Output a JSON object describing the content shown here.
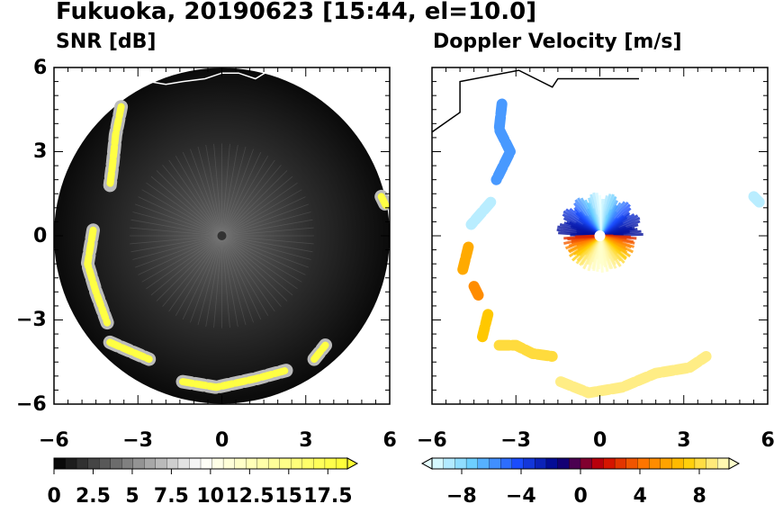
{
  "figure": {
    "title": "Fukuoka, 20190623 [15:44, el=10.0]"
  },
  "chart_data": [
    {
      "type": "heatmap",
      "title": "SNR [dB]",
      "xlim": [
        -6,
        6
      ],
      "ylim": [
        -6,
        6
      ],
      "x_ticks": [
        "−6",
        "−3",
        "0",
        "3",
        "6"
      ],
      "y_ticks": [
        "6",
        "3",
        "0",
        "−3",
        "−6"
      ],
      "x_tick_values": [
        -6,
        -3,
        0,
        3,
        6
      ],
      "y_tick_values": [
        6,
        3,
        0,
        -3,
        -6
      ],
      "radar_range": 6,
      "colorbar": {
        "min": 0,
        "max": 18.75,
        "extend": "max",
        "tick_labels": [
          "0",
          "2.5",
          "5",
          "7.5",
          "10",
          "12.5",
          "15",
          "17.5"
        ],
        "tick_values": [
          0,
          2.5,
          5,
          7.5,
          10,
          12.5,
          15,
          17.5
        ],
        "colors": [
          "#000000",
          "#ffffff",
          "#ffff33"
        ]
      },
      "echo_bands": [
        {
          "points": [
            [
              -3.6,
              4.6
            ],
            [
              -3.8,
              3.6
            ],
            [
              -3.9,
              2.6
            ],
            [
              -4.0,
              1.8
            ]
          ],
          "value": 18
        },
        {
          "points": [
            [
              -4.6,
              0.2
            ],
            [
              -4.8,
              -1.0
            ],
            [
              -4.5,
              -2.0
            ],
            [
              -4.1,
              -3.1
            ]
          ],
          "value": 18
        },
        {
          "points": [
            [
              -4.0,
              -3.8
            ],
            [
              -3.3,
              -4.1
            ],
            [
              -2.6,
              -4.4
            ]
          ],
          "value": 18
        },
        {
          "points": [
            [
              -1.4,
              -5.2
            ],
            [
              -0.2,
              -5.4
            ],
            [
              1.2,
              -5.1
            ],
            [
              2.3,
              -4.8
            ]
          ],
          "value": 18
        },
        {
          "points": [
            [
              3.3,
              -4.4
            ],
            [
              3.7,
              -3.9
            ]
          ],
          "value": 18
        },
        {
          "points": [
            [
              5.7,
              1.4
            ],
            [
              5.9,
              1.0
            ]
          ],
          "value": 18
        }
      ],
      "coastline": [
        [
          -2.6,
          5.5
        ],
        [
          -2.0,
          5.4
        ],
        [
          -1.4,
          5.5
        ],
        [
          -0.6,
          5.6
        ],
        [
          0,
          5.8
        ],
        [
          0.6,
          5.8
        ],
        [
          1.2,
          5.6
        ],
        [
          1.7,
          5.9
        ]
      ]
    },
    {
      "type": "heatmap",
      "title": "Doppler Velocity [m/s]",
      "xlim": [
        -6,
        6
      ],
      "ylim": [
        -6,
        6
      ],
      "x_ticks": [
        "−6",
        "−3",
        "0",
        "3",
        "6"
      ],
      "y_ticks": [],
      "x_tick_values": [
        -6,
        -3,
        0,
        3,
        6
      ],
      "radar_range": 6,
      "colorbar": {
        "min": -10,
        "max": 10,
        "extend": "both",
        "tick_labels": [
          "−8",
          "−4",
          "0",
          "4",
          "8"
        ],
        "tick_values": [
          -8,
          -4,
          0,
          4,
          8
        ],
        "colors": [
          "#e6ffff",
          "#66ccff",
          "#1a4dff",
          "#000080",
          "#cc0000",
          "#ff7700",
          "#ffcc00",
          "#ffffcc"
        ]
      },
      "echo_bands": [
        {
          "points": [
            [
              -3.5,
              4.7
            ],
            [
              -3.6,
              3.8
            ],
            [
              -3.2,
              3.0
            ],
            [
              -3.7,
              2.0
            ]
          ],
          "value": -6
        },
        {
          "points": [
            [
              -3.9,
              1.2
            ],
            [
              -4.6,
              0.4
            ]
          ],
          "value": -9
        },
        {
          "points": [
            [
              -4.7,
              -0.4
            ],
            [
              -4.9,
              -1.2
            ]
          ],
          "value": 6
        },
        {
          "points": [
            [
              -4.5,
              -1.8
            ],
            [
              -4.3,
              -2.2
            ]
          ],
          "value": 5
        },
        {
          "points": [
            [
              -4.0,
              -2.8
            ],
            [
              -4.2,
              -3.6
            ]
          ],
          "value": 7
        },
        {
          "points": [
            [
              -3.6,
              -3.9
            ],
            [
              -3.0,
              -3.9
            ],
            [
              -2.4,
              -4.2
            ],
            [
              -1.7,
              -4.3
            ]
          ],
          "value": 8
        },
        {
          "points": [
            [
              -1.4,
              -5.2
            ],
            [
              -0.4,
              -5.6
            ],
            [
              0.8,
              -5.4
            ],
            [
              2.0,
              -4.9
            ],
            [
              3.2,
              -4.7
            ],
            [
              3.8,
              -4.3
            ]
          ],
          "value": 9
        },
        {
          "points": [
            [
              5.5,
              1.4
            ],
            [
              5.7,
              1.2
            ]
          ],
          "value": -9
        }
      ],
      "coastline": [
        [
          -6.0,
          3.7
        ],
        [
          -5.0,
          4.4
        ],
        [
          -5.0,
          5.5
        ],
        [
          -2.9,
          5.9
        ],
        [
          -1.7,
          5.3
        ],
        [
          -1.5,
          5.6
        ],
        [
          0,
          5.6
        ],
        [
          1.4,
          5.6
        ]
      ]
    }
  ]
}
